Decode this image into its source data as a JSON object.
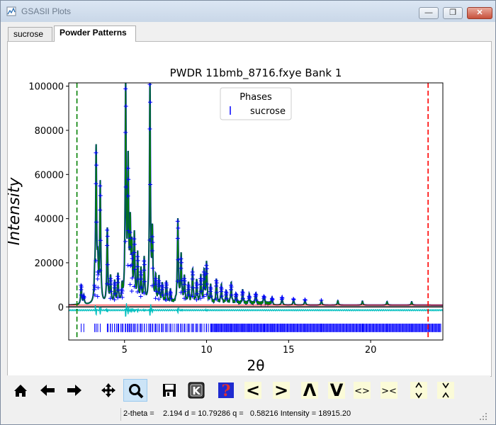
{
  "window": {
    "title": "GSASII Plots",
    "min_glyph": "—",
    "max_glyph": "❐",
    "close_glyph": "✕"
  },
  "tabs": [
    {
      "label": "sucrose"
    },
    {
      "label": "Powder Patterns"
    }
  ],
  "toolbar": {
    "buttons": [
      {
        "name": "home-icon"
      },
      {
        "name": "back-arrow-icon"
      },
      {
        "name": "forward-arrow-icon"
      },
      {
        "name": "pan-move-icon"
      },
      {
        "name": "zoom-magnifier-icon"
      },
      {
        "name": "save-disk-icon"
      },
      {
        "name": "k-key-icon",
        "glyph": "K"
      },
      {
        "name": "help-question-icon",
        "glyph": "?"
      },
      {
        "name": "shift-left-icon",
        "glyph": "<"
      },
      {
        "name": "shift-right-icon",
        "glyph": ">"
      },
      {
        "name": "shift-up-icon",
        "glyph": "Λ"
      },
      {
        "name": "shift-down-icon",
        "glyph": "V"
      },
      {
        "name": "expand-horizontal-icon",
        "glyph": "<>"
      },
      {
        "name": "compress-horizontal-icon",
        "glyph": "><"
      },
      {
        "name": "expand-vertical-icon",
        "glyph": "^v"
      },
      {
        "name": "compress-vertical-icon",
        "glyph": "v^"
      }
    ]
  },
  "status": {
    "text": "2-theta =    2.194 d = 10.79286 q =   0.58216 Intensity = 18915.20"
  },
  "colors": {
    "observed": "#0000ff",
    "calculated": "#008000",
    "background": "#ff0000",
    "difference": "#00bfbf",
    "limits": {
      "low": "#008000",
      "high": "#ff0000"
    },
    "reflections": "#0000ff"
  },
  "chart_data": {
    "type": "line",
    "title": "PWDR 11bmb_8716.fxye Bank 1",
    "xlabel": "2θ",
    "ylabel": "Intensity",
    "xlim": [
      1.6,
      24.4
    ],
    "ylim": [
      -15000,
      101500
    ],
    "xticks": [
      5,
      10,
      15,
      20
    ],
    "yticks": [
      0,
      20000,
      40000,
      60000,
      80000,
      100000
    ],
    "grid": false,
    "legend": {
      "title": "Phases",
      "placement": "top-center",
      "entries": [
        "sucrose"
      ]
    },
    "limits_lines": [
      2.1,
      23.5
    ],
    "background_level": 800,
    "difference_offset": -1500,
    "tickmark_row_y": -9500,
    "peaks": [
      {
        "x": 2.36,
        "y": 9000
      },
      {
        "x": 2.52,
        "y": 4000
      },
      {
        "x": 3.27,
        "y": 69000
      },
      {
        "x": 3.18,
        "y": 9000
      },
      {
        "x": 3.52,
        "y": 54000
      },
      {
        "x": 3.37,
        "y": 15000
      },
      {
        "x": 3.95,
        "y": 34000
      },
      {
        "x": 4.15,
        "y": 12000
      },
      {
        "x": 4.4,
        "y": 10000
      },
      {
        "x": 4.6,
        "y": 13000
      },
      {
        "x": 4.85,
        "y": 7000
      },
      {
        "x": 5.07,
        "y": 98000
      },
      {
        "x": 5.22,
        "y": 62000
      },
      {
        "x": 5.35,
        "y": 33000
      },
      {
        "x": 5.45,
        "y": 23000
      },
      {
        "x": 5.6,
        "y": 30000
      },
      {
        "x": 5.8,
        "y": 22000
      },
      {
        "x": 6.0,
        "y": 15000
      },
      {
        "x": 6.2,
        "y": 20000
      },
      {
        "x": 6.55,
        "y": 100000
      },
      {
        "x": 6.7,
        "y": 31000
      },
      {
        "x": 6.9,
        "y": 12000
      },
      {
        "x": 7.1,
        "y": 11000
      },
      {
        "x": 7.3,
        "y": 9000
      },
      {
        "x": 7.55,
        "y": 10000
      },
      {
        "x": 7.8,
        "y": 6000
      },
      {
        "x": 8.25,
        "y": 38000
      },
      {
        "x": 8.45,
        "y": 21000
      },
      {
        "x": 8.65,
        "y": 12000
      },
      {
        "x": 8.9,
        "y": 9000
      },
      {
        "x": 9.15,
        "y": 15000
      },
      {
        "x": 9.4,
        "y": 10000
      },
      {
        "x": 9.65,
        "y": 12000
      },
      {
        "x": 9.85,
        "y": 15000
      },
      {
        "x": 10.0,
        "y": 18000
      },
      {
        "x": 10.25,
        "y": 8000
      },
      {
        "x": 10.6,
        "y": 11000
      },
      {
        "x": 10.9,
        "y": 8000
      },
      {
        "x": 11.2,
        "y": 6000
      },
      {
        "x": 11.5,
        "y": 9000
      },
      {
        "x": 11.8,
        "y": 5000
      },
      {
        "x": 12.2,
        "y": 6000
      },
      {
        "x": 12.6,
        "y": 4000
      },
      {
        "x": 13.0,
        "y": 5000
      },
      {
        "x": 13.5,
        "y": 4000
      },
      {
        "x": 14.0,
        "y": 3000
      },
      {
        "x": 14.6,
        "y": 3500
      },
      {
        "x": 15.3,
        "y": 2800
      },
      {
        "x": 16.0,
        "y": 2500
      },
      {
        "x": 17.0,
        "y": 2200
      },
      {
        "x": 18.0,
        "y": 2000
      },
      {
        "x": 19.5,
        "y": 1800
      },
      {
        "x": 21.0,
        "y": 1600
      },
      {
        "x": 22.5,
        "y": 1500
      }
    ]
  }
}
